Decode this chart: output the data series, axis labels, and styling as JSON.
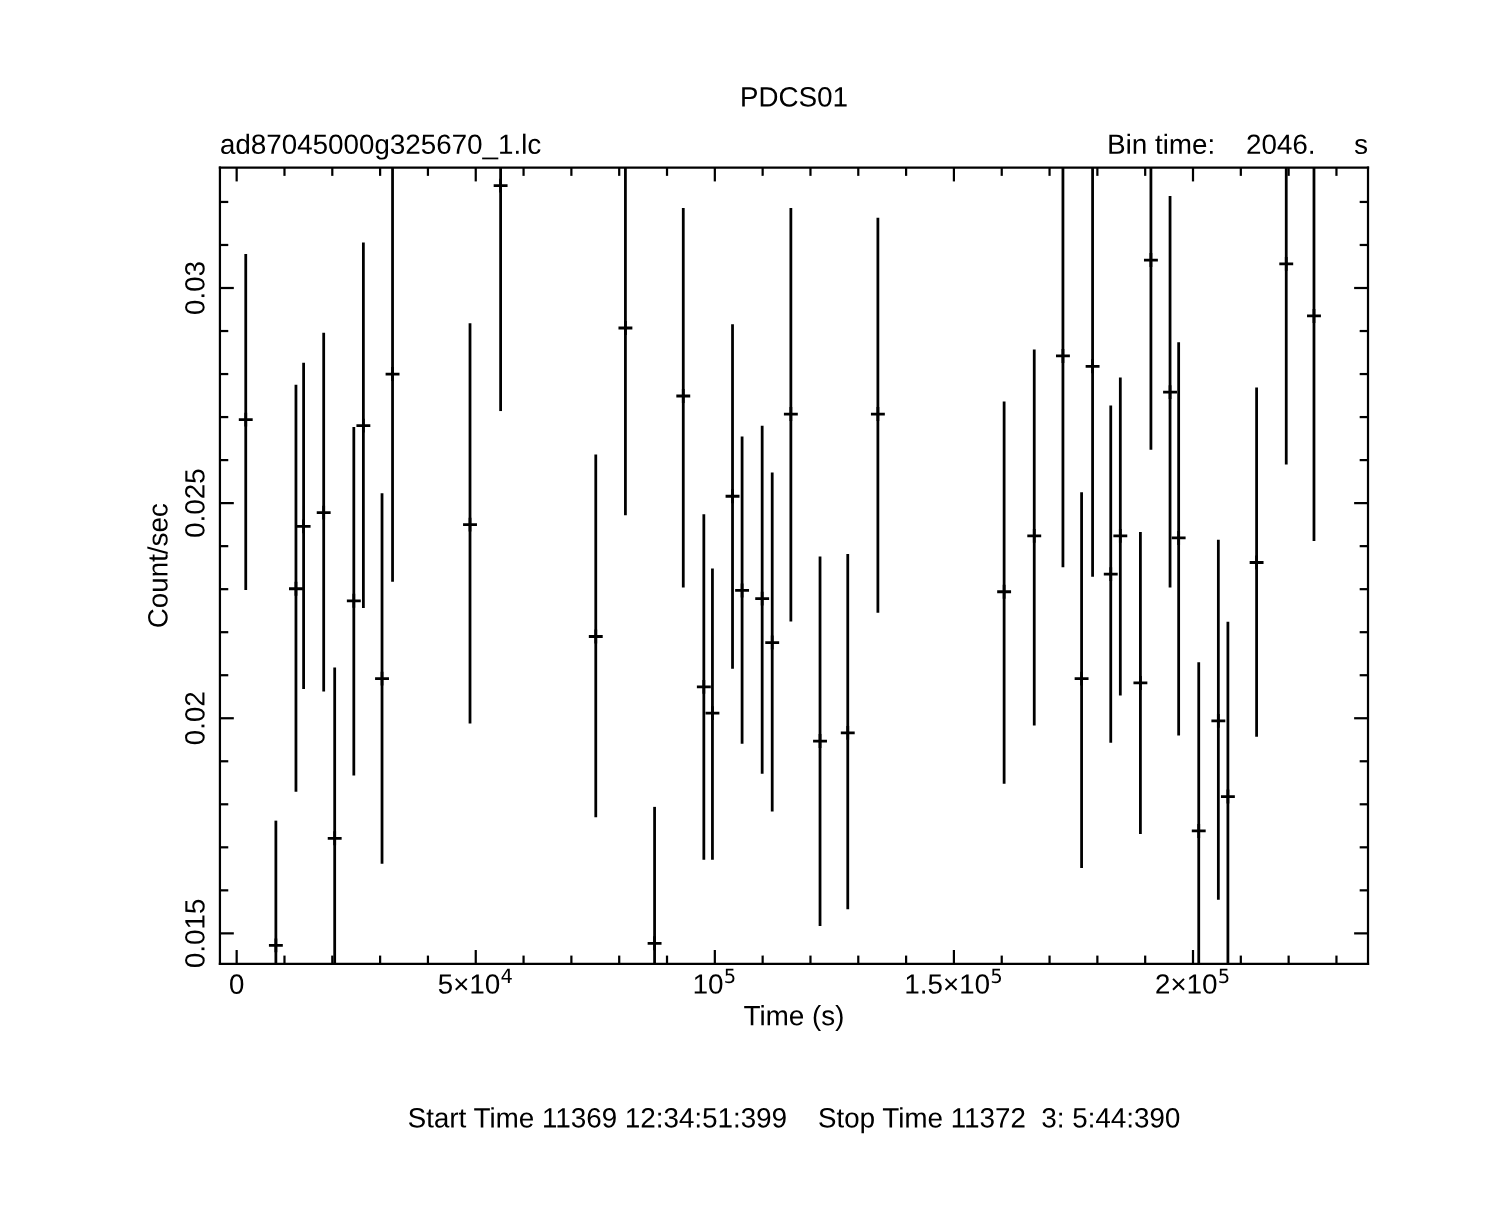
{
  "chart_data": {
    "type": "scatter",
    "title": "PDCS01",
    "xlabel": "Time (s)",
    "ylabel": "Count/sec",
    "annotations": [
      "ad87045000g325670_1.lc",
      "Bin time:    2046.     s",
      "Start Time 11369 12:34:51:399    Stop Time 11372  3: 5:44:390"
    ],
    "marker": "cross",
    "grid": false,
    "legend": false,
    "xlim": [
      -3500,
      236600
    ],
    "ylim": [
      0.01429,
      0.0328
    ],
    "xticks": [
      {
        "value": 0,
        "label": "0"
      },
      {
        "value": 10000,
        "label": null
      },
      {
        "value": 20000,
        "label": null
      },
      {
        "value": 30000,
        "label": null
      },
      {
        "value": 40000,
        "label": null
      },
      {
        "value": 50000,
        "label": "5×10$^{4}$"
      },
      {
        "value": 60000,
        "label": null
      },
      {
        "value": 70000,
        "label": null
      },
      {
        "value": 80000,
        "label": null
      },
      {
        "value": 90000,
        "label": null
      },
      {
        "value": 100000,
        "label": "10$^{5}$"
      },
      {
        "value": 110000,
        "label": null
      },
      {
        "value": 120000,
        "label": null
      },
      {
        "value": 130000,
        "label": null
      },
      {
        "value": 140000,
        "label": null
      },
      {
        "value": 150000,
        "label": "1.5×10$^{5}$"
      },
      {
        "value": 160000,
        "label": null
      },
      {
        "value": 170000,
        "label": null
      },
      {
        "value": 180000,
        "label": null
      },
      {
        "value": 190000,
        "label": null
      },
      {
        "value": 200000,
        "label": "2×10$^{5}$"
      },
      {
        "value": 210000,
        "label": null
      },
      {
        "value": 220000,
        "label": null
      },
      {
        "value": 230000,
        "label": null
      }
    ],
    "yticks": [
      0.015,
      {
        "value": 0.016,
        "label": null
      },
      {
        "value": 0.017,
        "label": null
      },
      {
        "value": 0.018,
        "label": null
      },
      {
        "value": 0.019,
        "label": null
      },
      0.02,
      {
        "value": 0.021,
        "label": null
      },
      {
        "value": 0.022,
        "label": null
      },
      {
        "value": 0.023,
        "label": null
      },
      {
        "value": 0.024,
        "label": null
      },
      0.025,
      {
        "value": 0.026,
        "label": null
      },
      {
        "value": 0.027,
        "label": null
      },
      {
        "value": 0.028,
        "label": null
      },
      {
        "value": 0.029,
        "label": null
      },
      0.03,
      {
        "value": 0.031,
        "label": null
      },
      {
        "value": 0.032,
        "label": null
      }
    ],
    "series": [
      {
        "color": "#000000",
        "x": [
          1900,
          8200,
          12400,
          14000,
          18200,
          20500,
          24500,
          26500,
          30400,
          32600,
          48800,
          55200,
          75100,
          81300,
          87400,
          93400,
          97700,
          99500,
          103700,
          105700,
          109900,
          112000,
          115900,
          122000,
          127800,
          134100,
          160500,
          166800,
          172800,
          176700,
          179000,
          182800,
          184800,
          189000,
          191200,
          195200,
          197000,
          201200,
          205300,
          207300,
          213300,
          219500,
          225300
        ],
        "values": [
          0.02694,
          0.01472,
          0.02301,
          0.02446,
          0.02478,
          0.01721,
          0.02273,
          0.0268,
          0.02092,
          0.028,
          0.0245,
          0.03238,
          0.0219,
          0.02907,
          0.01477,
          0.02749,
          0.02073,
          0.02012,
          0.02516,
          0.02297,
          0.02278,
          0.02176,
          0.02707,
          0.01947,
          0.01966,
          0.02707,
          0.02294,
          0.02424,
          0.02842,
          0.02092,
          0.02818,
          0.02335,
          0.02424,
          0.02082,
          0.03065,
          0.02758,
          0.02419,
          0.01738,
          0.01994,
          0.01818,
          0.02362,
          0.03056,
          0.02935
        ],
        "errors": [
          [
            0.02298,
            0.03079
          ],
          [
            0.01429,
            0.01762
          ],
          [
            0.01829,
            0.02775
          ],
          [
            0.02068,
            0.02826
          ],
          [
            0.02062,
            0.02896
          ],
          [
            0.01429,
            0.02118
          ],
          [
            0.01867,
            0.02677
          ],
          [
            0.02256,
            0.03106
          ],
          [
            0.01662,
            0.02523
          ],
          [
            0.02317,
            0.0328
          ],
          [
            0.01988,
            0.02918
          ],
          [
            0.02714,
            0.0328
          ],
          [
            0.0177,
            0.02613
          ],
          [
            0.02472,
            0.0328
          ],
          [
            0.01429,
            0.01794
          ],
          [
            0.02304,
            0.03186
          ],
          [
            0.01671,
            0.02474
          ],
          [
            0.01671,
            0.02348
          ],
          [
            0.02115,
            0.02916
          ],
          [
            0.01941,
            0.02655
          ],
          [
            0.01871,
            0.0268
          ],
          [
            0.01783,
            0.02571
          ],
          [
            0.02225,
            0.03186
          ],
          [
            0.01517,
            0.02376
          ],
          [
            0.01556,
            0.02382
          ],
          [
            0.02245,
            0.03163
          ],
          [
            0.01848,
            0.02736
          ],
          [
            0.01983,
            0.02857
          ],
          [
            0.02351,
            0.0328
          ],
          [
            0.01652,
            0.02525
          ],
          [
            0.02329,
            0.0328
          ],
          [
            0.01943,
            0.02727
          ],
          [
            0.02053,
            0.02792
          ],
          [
            0.01731,
            0.02433
          ],
          [
            0.02624,
            0.0328
          ],
          [
            0.02304,
            0.03214
          ],
          [
            0.0196,
            0.02874
          ],
          [
            0.01429,
            0.0213
          ],
          [
            0.01578,
            0.02415
          ],
          [
            0.01429,
            0.02224
          ],
          [
            0.01957,
            0.02769
          ],
          [
            0.0259,
            0.0328
          ],
          [
            0.02412,
            0.0328
          ]
        ]
      }
    ]
  }
}
